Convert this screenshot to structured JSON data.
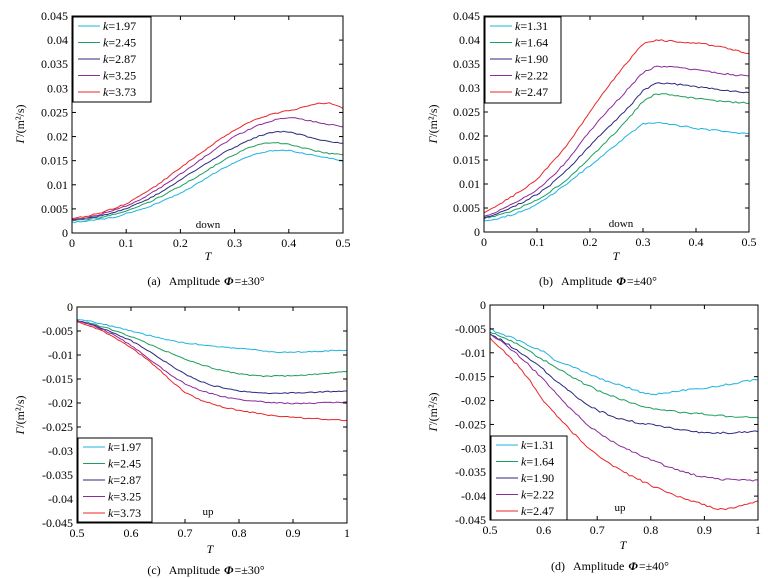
{
  "chart_data": [
    {
      "type": "line",
      "title": "",
      "xlabel": "T",
      "ylabel": "Γ/(m²/s)",
      "xlim": [
        0,
        0.5
      ],
      "ylim": [
        0,
        0.045
      ],
      "grid": false,
      "xticks": [
        "0",
        "0.1",
        "0.2",
        "0.3",
        "0.4",
        "0.5"
      ],
      "yticks": [
        "0",
        "0.005",
        "0.01",
        "0.015",
        "0.02",
        "0.025",
        "0.03",
        "0.035",
        "0.04",
        "0.045"
      ],
      "annotation": "down",
      "legend_position": "top-left",
      "caption": {
        "label": "(a)",
        "text": "Amplitude",
        "symbol": "Φ",
        "value": "=±30°"
      },
      "x": [
        0,
        0.025,
        0.05,
        0.075,
        0.1,
        0.125,
        0.15,
        0.175,
        0.2,
        0.225,
        0.25,
        0.275,
        0.3,
        0.325,
        0.35,
        0.375,
        0.4,
        0.425,
        0.45,
        0.475,
        0.5
      ],
      "series": [
        {
          "name": "k=1.97",
          "color": "#1fb3e0",
          "values": [
            0.0022,
            0.0025,
            0.0028,
            0.0032,
            0.004,
            0.0048,
            0.0058,
            0.007,
            0.0083,
            0.0098,
            0.0115,
            0.0132,
            0.0146,
            0.0158,
            0.0167,
            0.0172,
            0.0171,
            0.0166,
            0.016,
            0.0155,
            0.015
          ]
        },
        {
          "name": "k=2.45",
          "color": "#1e9e5e",
          "values": [
            0.0026,
            0.0028,
            0.0032,
            0.0038,
            0.0046,
            0.0056,
            0.0068,
            0.0082,
            0.0097,
            0.0113,
            0.013,
            0.0148,
            0.0163,
            0.0176,
            0.0185,
            0.0188,
            0.0184,
            0.0177,
            0.017,
            0.0165,
            0.0162
          ]
        },
        {
          "name": "k=2.87",
          "color": "#2a2a7e",
          "values": [
            0.0027,
            0.003,
            0.0035,
            0.0042,
            0.0051,
            0.0062,
            0.0076,
            0.0092,
            0.011,
            0.0128,
            0.0146,
            0.0163,
            0.0178,
            0.0192,
            0.0203,
            0.021,
            0.021,
            0.0203,
            0.0195,
            0.019,
            0.0186
          ]
        },
        {
          "name": "k=3.25",
          "color": "#8c2a9c",
          "values": [
            0.0028,
            0.0032,
            0.0038,
            0.0046,
            0.0056,
            0.0069,
            0.0085,
            0.0103,
            0.0122,
            0.0142,
            0.0162,
            0.0182,
            0.02,
            0.0214,
            0.0226,
            0.0235,
            0.024,
            0.0236,
            0.023,
            0.0225,
            0.022
          ]
        },
        {
          "name": "k=3.73",
          "color": "#e8262a",
          "values": [
            0.003,
            0.0034,
            0.0041,
            0.005,
            0.0061,
            0.0076,
            0.0094,
            0.0114,
            0.0135,
            0.0156,
            0.0176,
            0.0196,
            0.0214,
            0.0229,
            0.024,
            0.0248,
            0.0254,
            0.026,
            0.0268,
            0.027,
            0.0258
          ]
        }
      ]
    },
    {
      "type": "line",
      "title": "",
      "xlabel": "T",
      "ylabel": "Γ/(m²/s)",
      "xlim": [
        0,
        0.5
      ],
      "ylim": [
        0,
        0.045
      ],
      "grid": false,
      "xticks": [
        "0",
        "0.1",
        "0.2",
        "0.3",
        "0.4",
        "0.5"
      ],
      "yticks": [
        "0",
        "0.005",
        "0.01",
        "0.015",
        "0.02",
        "0.025",
        "0.03",
        "0.035",
        "0.04",
        "0.045"
      ],
      "annotation": "down",
      "legend_position": "top-left",
      "caption": {
        "label": "(b)",
        "text": "Amplitude",
        "symbol": "Φ",
        "value": "=±40°"
      },
      "x": [
        0,
        0.025,
        0.05,
        0.075,
        0.1,
        0.125,
        0.15,
        0.175,
        0.2,
        0.225,
        0.25,
        0.275,
        0.3,
        0.325,
        0.35,
        0.375,
        0.4,
        0.425,
        0.45,
        0.475,
        0.5
      ],
      "series": [
        {
          "name": "k=1.31",
          "color": "#1fb3e0",
          "values": [
            0.0022,
            0.0028,
            0.0035,
            0.0045,
            0.0058,
            0.0076,
            0.0096,
            0.0117,
            0.0138,
            0.016,
            0.0182,
            0.0205,
            0.0225,
            0.0228,
            0.0224,
            0.022,
            0.0216,
            0.0213,
            0.021,
            0.0207,
            0.0205
          ]
        },
        {
          "name": "k=1.64",
          "color": "#1e9e5e",
          "values": [
            0.0028,
            0.0035,
            0.0043,
            0.0054,
            0.0067,
            0.0084,
            0.0104,
            0.0128,
            0.0155,
            0.0182,
            0.021,
            0.024,
            0.0272,
            0.0288,
            0.0286,
            0.0282,
            0.0278,
            0.0275,
            0.0272,
            0.027,
            0.0268
          ]
        },
        {
          "name": "k=1.90",
          "color": "#2a2a7e",
          "values": [
            0.003,
            0.0039,
            0.005,
            0.0063,
            0.0078,
            0.0098,
            0.0122,
            0.015,
            0.018,
            0.0208,
            0.0235,
            0.0262,
            0.0295,
            0.031,
            0.031,
            0.0306,
            0.0302,
            0.0299,
            0.0296,
            0.0293,
            0.029
          ]
        },
        {
          "name": "k=2.22",
          "color": "#8c2a9c",
          "values": [
            0.0032,
            0.0043,
            0.0056,
            0.0071,
            0.0088,
            0.0112,
            0.014,
            0.0175,
            0.021,
            0.0242,
            0.0272,
            0.0302,
            0.0332,
            0.0345,
            0.0345,
            0.0342,
            0.0338,
            0.0334,
            0.033,
            0.0327,
            0.0325
          ]
        },
        {
          "name": "k=2.47",
          "color": "#e8262a",
          "values": [
            0.004,
            0.0055,
            0.0072,
            0.009,
            0.011,
            0.014,
            0.0172,
            0.021,
            0.025,
            0.029,
            0.0325,
            0.036,
            0.0392,
            0.04,
            0.0398,
            0.0396,
            0.0394,
            0.039,
            0.0385,
            0.0378,
            0.0372
          ]
        }
      ]
    },
    {
      "type": "line",
      "title": "",
      "xlabel": "T",
      "ylabel": "Γ/(m²/s)",
      "xlim": [
        0.5,
        1
      ],
      "ylim": [
        -0.045,
        0
      ],
      "grid": false,
      "xticks": [
        "0.5",
        "0.6",
        "0.7",
        "0.8",
        "0.9",
        "1"
      ],
      "yticks": [
        "0",
        "-0.005",
        "-0.01",
        "-0.015",
        "-0.02",
        "-0.025",
        "-0.03",
        "-0.035",
        "-0.04",
        "-0.045"
      ],
      "annotation": "up",
      "legend_position": "bottom-left",
      "caption": {
        "label": "(c)",
        "text": "Amplitude",
        "symbol": "Φ",
        "value": "=±30°"
      },
      "x": [
        0.5,
        0.525,
        0.55,
        0.575,
        0.6,
        0.625,
        0.65,
        0.675,
        0.7,
        0.725,
        0.75,
        0.775,
        0.8,
        0.825,
        0.85,
        0.875,
        0.9,
        0.925,
        0.95,
        0.975,
        1
      ],
      "series": [
        {
          "name": "k=1.97",
          "color": "#1fb3e0",
          "values": [
            -0.0025,
            -0.003,
            -0.0036,
            -0.0043,
            -0.005,
            -0.0057,
            -0.0064,
            -0.007,
            -0.0075,
            -0.0078,
            -0.0081,
            -0.0084,
            -0.0086,
            -0.0089,
            -0.0092,
            -0.0094,
            -0.0094,
            -0.0093,
            -0.0092,
            -0.0091,
            -0.009
          ]
        },
        {
          "name": "k=2.45",
          "color": "#1e9e5e",
          "values": [
            -0.0028,
            -0.0034,
            -0.0042,
            -0.0051,
            -0.0062,
            -0.0073,
            -0.0085,
            -0.0097,
            -0.0108,
            -0.0118,
            -0.0127,
            -0.0134,
            -0.0139,
            -0.0143,
            -0.0144,
            -0.0144,
            -0.0143,
            -0.0141,
            -0.0139,
            -0.0137,
            -0.0135
          ]
        },
        {
          "name": "k=2.87",
          "color": "#2a2a7e",
          "values": [
            -0.0028,
            -0.0036,
            -0.0046,
            -0.0057,
            -0.007,
            -0.0086,
            -0.0104,
            -0.0123,
            -0.014,
            -0.0153,
            -0.0163,
            -0.017,
            -0.0175,
            -0.0178,
            -0.018,
            -0.018,
            -0.0179,
            -0.0178,
            -0.0177,
            -0.0176,
            -0.0175
          ]
        },
        {
          "name": "k=3.25",
          "color": "#8c2a9c",
          "values": [
            -0.0028,
            -0.0037,
            -0.0048,
            -0.0062,
            -0.008,
            -0.01,
            -0.0122,
            -0.0143,
            -0.016,
            -0.0172,
            -0.0181,
            -0.0188,
            -0.0193,
            -0.0196,
            -0.0198,
            -0.02,
            -0.0201,
            -0.0201,
            -0.02,
            -0.0199,
            -0.0198
          ]
        },
        {
          "name": "k=3.73",
          "color": "#e8262a",
          "values": [
            -0.003,
            -0.004,
            -0.0052,
            -0.0067,
            -0.0085,
            -0.0105,
            -0.0128,
            -0.0155,
            -0.0178,
            -0.0192,
            -0.0202,
            -0.021,
            -0.0215,
            -0.022,
            -0.0225,
            -0.0228,
            -0.023,
            -0.0232,
            -0.0233,
            -0.0235,
            -0.0236
          ]
        }
      ]
    },
    {
      "type": "line",
      "title": "",
      "xlabel": "T",
      "ylabel": "Γ/(m²/s)",
      "xlim": [
        0.5,
        1
      ],
      "ylim": [
        -0.045,
        0
      ],
      "grid": false,
      "xticks": [
        "0.5",
        "0.6",
        "0.7",
        "0.8",
        "0.9",
        "1"
      ],
      "yticks": [
        "0",
        "-0.005",
        "-0.01",
        "-0.015",
        "-0.02",
        "-0.025",
        "-0.03",
        "-0.035",
        "-0.04",
        "-0.045"
      ],
      "annotation": "up",
      "legend_position": "bottom-left",
      "caption": {
        "label": "(d)",
        "text": "Amplitude",
        "symbol": "Φ",
        "value": "=±40°"
      },
      "x": [
        0.5,
        0.525,
        0.55,
        0.575,
        0.6,
        0.625,
        0.65,
        0.675,
        0.7,
        0.725,
        0.75,
        0.775,
        0.8,
        0.825,
        0.85,
        0.875,
        0.9,
        0.925,
        0.95,
        0.975,
        1
      ],
      "series": [
        {
          "name": "k=1.31",
          "color": "#1fb3e0",
          "values": [
            -0.005,
            -0.0062,
            -0.0073,
            -0.0085,
            -0.0098,
            -0.0118,
            -0.0128,
            -0.014,
            -0.0153,
            -0.0162,
            -0.017,
            -0.018,
            -0.0188,
            -0.0185,
            -0.018,
            -0.0177,
            -0.0174,
            -0.017,
            -0.0165,
            -0.016,
            -0.0157
          ]
        },
        {
          "name": "k=1.64",
          "color": "#1e9e5e",
          "values": [
            -0.0055,
            -0.0068,
            -0.0082,
            -0.0098,
            -0.0115,
            -0.0132,
            -0.0148,
            -0.0164,
            -0.0178,
            -0.019,
            -0.02,
            -0.0208,
            -0.0215,
            -0.022,
            -0.0224,
            -0.0226,
            -0.0228,
            -0.0231,
            -0.0233,
            -0.0235,
            -0.0236
          ]
        },
        {
          "name": "k=1.90",
          "color": "#2a2a7e",
          "values": [
            -0.006,
            -0.0076,
            -0.0095,
            -0.0115,
            -0.0136,
            -0.016,
            -0.0183,
            -0.0203,
            -0.022,
            -0.0232,
            -0.024,
            -0.0246,
            -0.025,
            -0.0255,
            -0.026,
            -0.0265,
            -0.0268,
            -0.0268,
            -0.0267,
            -0.0266,
            -0.0265
          ]
        },
        {
          "name": "k=2.22",
          "color": "#8c2a9c",
          "values": [
            -0.006,
            -0.008,
            -0.0103,
            -0.0128,
            -0.0157,
            -0.0188,
            -0.0217,
            -0.0244,
            -0.0266,
            -0.0283,
            -0.0298,
            -0.0312,
            -0.0324,
            -0.0335,
            -0.0345,
            -0.0354,
            -0.036,
            -0.0364,
            -0.0366,
            -0.0367,
            -0.0366
          ]
        },
        {
          "name": "k=2.47",
          "color": "#e8262a",
          "values": [
            -0.007,
            -0.0095,
            -0.0125,
            -0.016,
            -0.02,
            -0.0232,
            -0.0262,
            -0.029,
            -0.0314,
            -0.0333,
            -0.035,
            -0.0364,
            -0.0377,
            -0.039,
            -0.04,
            -0.041,
            -0.0418,
            -0.0428,
            -0.0425,
            -0.0418,
            -0.041
          ]
        }
      ]
    }
  ]
}
